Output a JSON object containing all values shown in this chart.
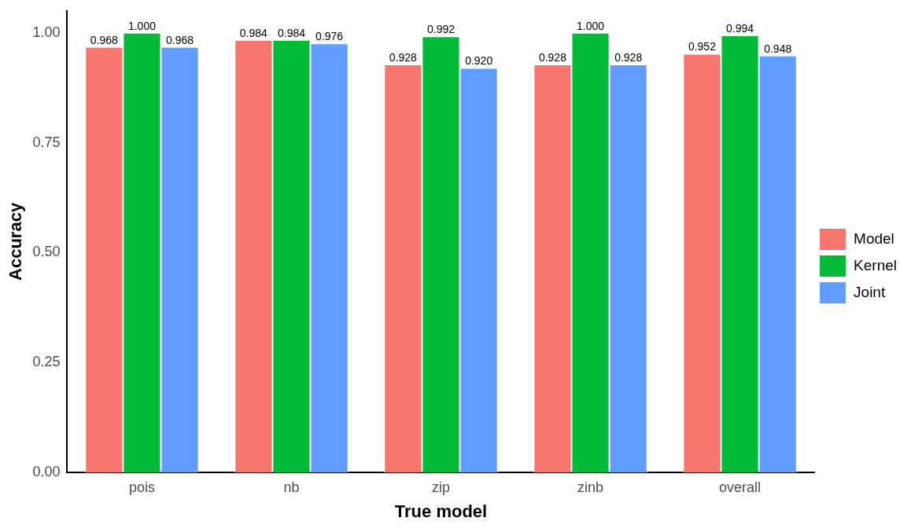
{
  "chart_data": {
    "type": "bar",
    "xlabel": "True model",
    "ylabel": "Accuracy",
    "categories": [
      "pois",
      "nb",
      "zip",
      "zinb",
      "overall"
    ],
    "series": [
      {
        "name": "Model",
        "color": "#f8766d",
        "values": [
          0.968,
          0.984,
          0.928,
          0.928,
          0.952
        ],
        "value_labels": [
          "0.968",
          "0.984",
          "0.928",
          "0.928",
          "0.952"
        ]
      },
      {
        "name": "Kernel",
        "color": "#00ba38",
        "values": [
          1.0,
          0.984,
          0.992,
          1.0,
          0.994
        ],
        "value_labels": [
          "1.000",
          "0.984",
          "0.992",
          "1.000",
          "0.994"
        ]
      },
      {
        "name": "Joint",
        "color": "#619cff",
        "values": [
          0.968,
          0.976,
          0.92,
          0.928,
          0.948
        ],
        "value_labels": [
          "0.968",
          "0.976",
          "0.920",
          "0.928",
          "0.948"
        ]
      }
    ],
    "ylim": [
      0,
      1.05
    ],
    "yticks": [
      {
        "value": 0,
        "label": "0.00"
      },
      {
        "value": 0.25,
        "label": "0.25"
      },
      {
        "value": 0.5,
        "label": "0.50"
      },
      {
        "value": 0.75,
        "label": "0.75"
      },
      {
        "value": 1,
        "label": "1.00"
      }
    ],
    "grid": false,
    "legend": "right"
  }
}
